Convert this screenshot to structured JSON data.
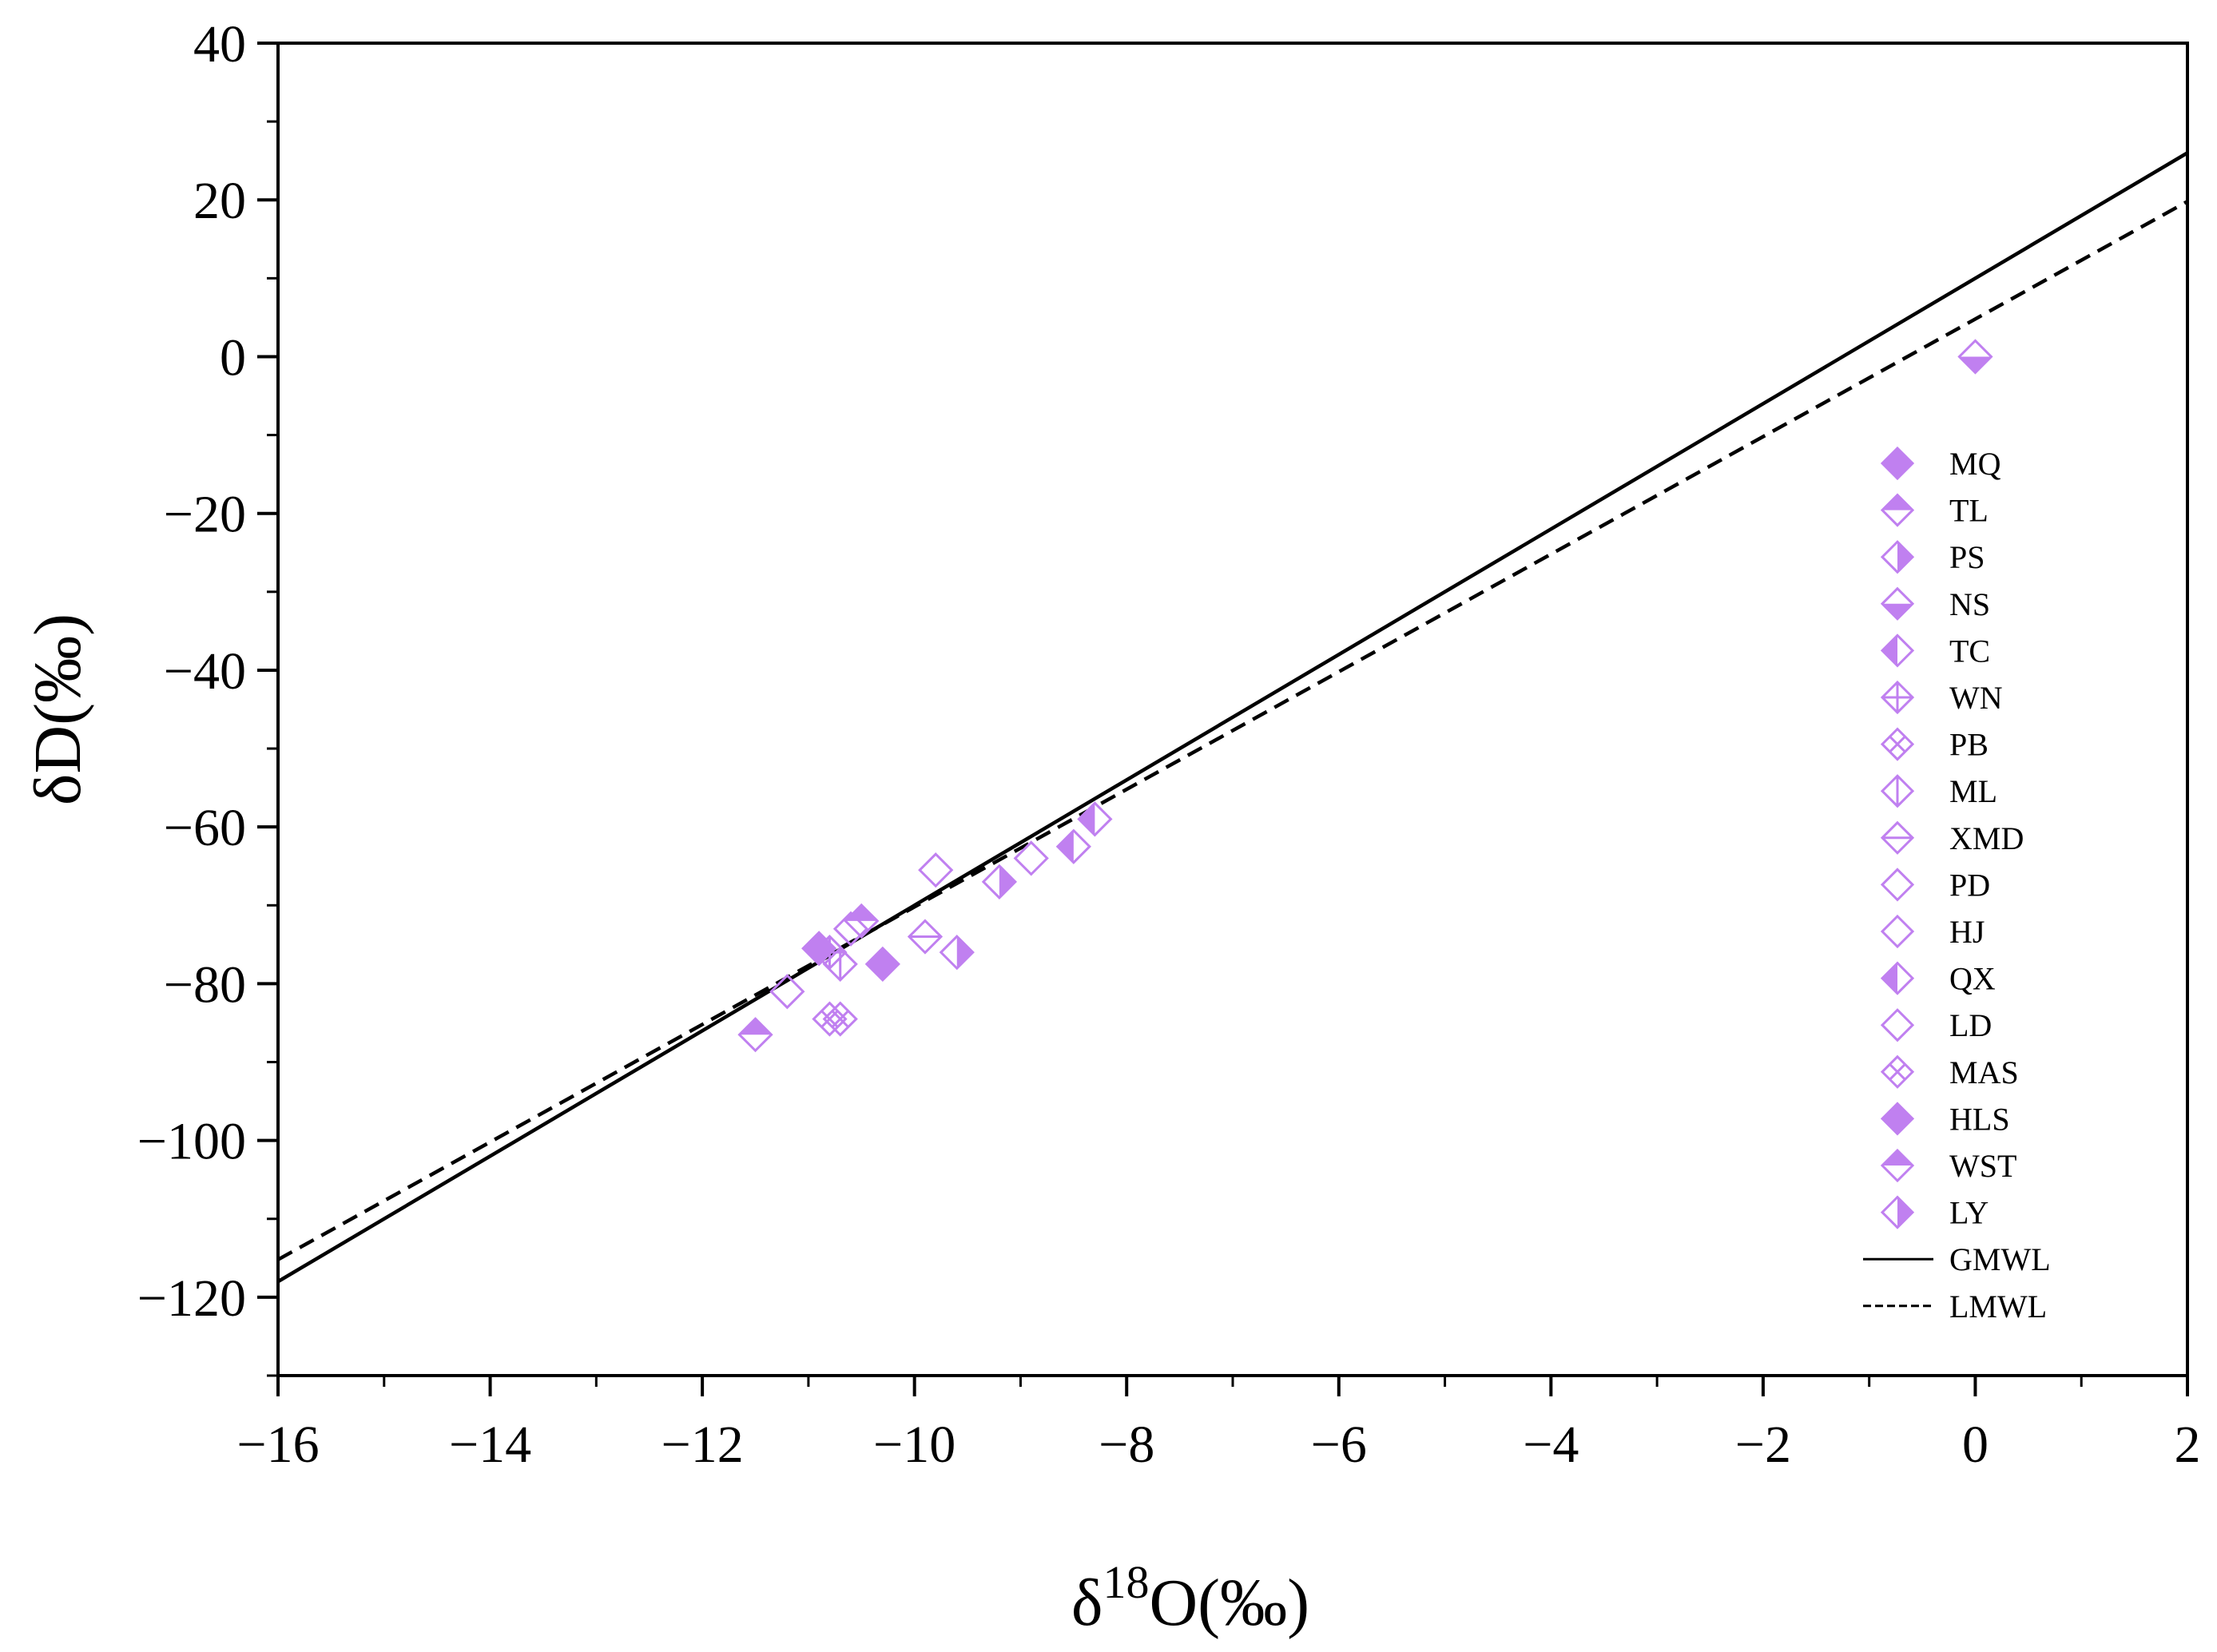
{
  "chart_data": {
    "type": "scatter",
    "xlabel": {
      "base": "δ",
      "sup": "18",
      "rest": "O(‰)"
    },
    "ylabel": "δD(‰)",
    "xlim": [
      -16,
      2
    ],
    "ylim": [
      -130,
      40
    ],
    "x_ticks": [
      -16,
      -14,
      -12,
      -10,
      -8,
      -6,
      -4,
      -2,
      0,
      2
    ],
    "x_tick_labels": [
      "−16",
      "−14",
      "−12",
      "−10",
      "−8",
      "−6",
      "−4",
      "−2",
      "0",
      "2"
    ],
    "y_ticks": [
      40,
      20,
      0,
      -20,
      -40,
      -60,
      -80,
      -100,
      -120
    ],
    "y_tick_labels": [
      "40",
      "20",
      "0",
      "−20",
      "−40",
      "−60",
      "−80",
      "−100",
      "−120"
    ],
    "grid": false,
    "legend_position": "right",
    "marker_color": "#c080f0",
    "series": [
      {
        "name": "MQ",
        "marker": "full",
        "points": [
          [
            -10.3,
            -77.5
          ]
        ]
      },
      {
        "name": "TL",
        "marker": "top",
        "points": [
          [
            -10.5,
            -72
          ]
        ]
      },
      {
        "name": "PS",
        "marker": "right",
        "points": [
          [
            -9.2,
            -67
          ]
        ]
      },
      {
        "name": "NS",
        "marker": "bottom",
        "points": [
          [
            0,
            0
          ]
        ]
      },
      {
        "name": "TC",
        "marker": "left",
        "points": [
          [
            -8.5,
            -62.5
          ]
        ]
      },
      {
        "name": "WN",
        "marker": "plus",
        "points": [
          [
            -10.8,
            -76
          ]
        ]
      },
      {
        "name": "PB",
        "marker": "cross",
        "points": [
          [
            -10.8,
            -84.5
          ]
        ]
      },
      {
        "name": "ML",
        "marker": "vline",
        "points": [
          [
            -10.7,
            -77.5
          ]
        ]
      },
      {
        "name": "XMD",
        "marker": "hline",
        "points": [
          [
            -9.9,
            -74
          ]
        ]
      },
      {
        "name": "PD",
        "marker": "open",
        "points": [
          [
            -9.8,
            -65.5
          ]
        ]
      },
      {
        "name": "HJ",
        "marker": "open",
        "points": [
          [
            -10.6,
            -73
          ]
        ]
      },
      {
        "name": "QX",
        "marker": "left",
        "points": [
          [
            -8.3,
            -59
          ]
        ]
      },
      {
        "name": "LD",
        "marker": "open",
        "points": [
          [
            -11.2,
            -81
          ],
          [
            -8.9,
            -64
          ]
        ]
      },
      {
        "name": "MAS",
        "marker": "cross",
        "points": [
          [
            -10.7,
            -84.5
          ]
        ]
      },
      {
        "name": "HLS",
        "marker": "full",
        "points": [
          [
            -10.9,
            -75.5
          ]
        ]
      },
      {
        "name": "WST",
        "marker": "top",
        "points": [
          [
            -11.5,
            -86.5
          ]
        ]
      },
      {
        "name": "LY",
        "marker": "right",
        "points": [
          [
            -9.6,
            -76
          ]
        ]
      }
    ],
    "lines": [
      {
        "name": "GMWL",
        "style": "solid",
        "slope": 8,
        "intercept": 10
      },
      {
        "name": "LMWL",
        "style": "dashed",
        "slope": 7.5,
        "intercept": 4.8
      }
    ]
  }
}
